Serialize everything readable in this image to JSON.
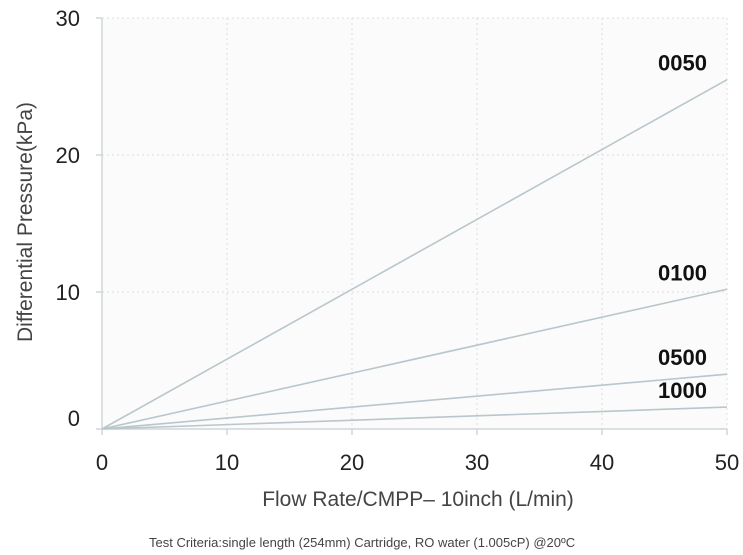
{
  "chart_data": {
    "type": "line",
    "xlabel": "Flow Rate/CMPP– 10inch (L/min)",
    "ylabel": "Differential Pressure(kPa)",
    "caption": "Test Criteria:single length (254mm) Cartridge, RO water (1.005cP) @20ºC",
    "xlim": [
      0,
      50
    ],
    "ylim": [
      0,
      30
    ],
    "x_ticks": [
      "0",
      "10",
      "20",
      "30",
      "40",
      "50"
    ],
    "y_ticks": [
      "0",
      "10",
      "20",
      "30"
    ],
    "grid": true,
    "series": [
      {
        "name": "0050",
        "x": [
          0,
          50
        ],
        "y": [
          0,
          25.5
        ]
      },
      {
        "name": "0100",
        "x": [
          0,
          50
        ],
        "y": [
          0,
          10.2
        ]
      },
      {
        "name": "0500",
        "x": [
          0,
          50
        ],
        "y": [
          0,
          4.0
        ]
      },
      {
        "name": "1000",
        "x": [
          0,
          50
        ],
        "y": [
          0,
          1.6
        ]
      }
    ],
    "colors": {
      "line": "#b9c6cc",
      "grid": "#dddddd",
      "axis": "#cfd6da",
      "plot_bg": "#fbfbfb"
    }
  }
}
